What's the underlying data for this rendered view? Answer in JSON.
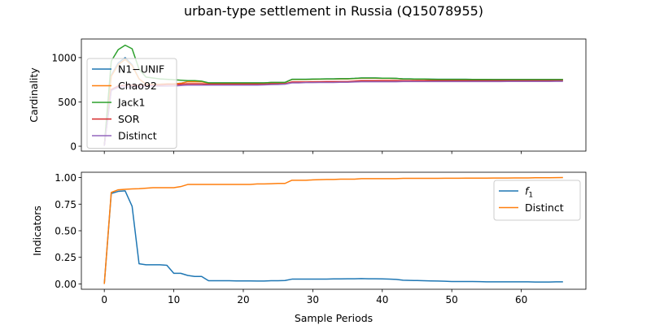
{
  "figure": {
    "title": "urban-type settlement in Russia (Q15078955)"
  },
  "chart_data": [
    {
      "type": "line",
      "ylabel": "Cardinality",
      "xlabel": "",
      "xlim": [
        -3.3,
        69.3
      ],
      "ylim": [
        -55,
        1210
      ],
      "xticks": [
        0,
        10,
        20,
        30,
        40,
        50,
        60
      ],
      "yticks": [
        0,
        500,
        1000
      ],
      "ytick_labels": [
        "0",
        "500",
        "1000"
      ],
      "show_x_tick_labels": false,
      "legend_position": "upper-left",
      "series": [
        {
          "name": "N1−UNIF",
          "color": "#1f77b4",
          "x": [
            0,
            1,
            2,
            3,
            4,
            5,
            6,
            7,
            8,
            9,
            10,
            11,
            12,
            13,
            14,
            15,
            16,
            17,
            18,
            19,
            20,
            21,
            22,
            23,
            24,
            25,
            26,
            27,
            28,
            29,
            30,
            31,
            32,
            33,
            34,
            35,
            36,
            37,
            38,
            39,
            40,
            41,
            42,
            43,
            44,
            45,
            46,
            47,
            48,
            49,
            50,
            51,
            52,
            53,
            54,
            55,
            56,
            57,
            58,
            59,
            60,
            61,
            62,
            63,
            64,
            65,
            66
          ],
          "y": [
            5,
            800,
            940,
            1000,
            920,
            760,
            700,
            700,
            700,
            705,
            705,
            710,
            730,
            730,
            730,
            715,
            715,
            715,
            715,
            715,
            715,
            715,
            715,
            715,
            720,
            720,
            720,
            755,
            755,
            755,
            757,
            758,
            760,
            760,
            762,
            762,
            765,
            770,
            770,
            770,
            768,
            768,
            766,
            760,
            760,
            758,
            758,
            756,
            755,
            755,
            755,
            755,
            755,
            754,
            754,
            754,
            753,
            753,
            753,
            753,
            753,
            753,
            753,
            753,
            753,
            753,
            753
          ]
        },
        {
          "name": "Chao92",
          "color": "#ff7f0e",
          "x": [
            0,
            1,
            2,
            3,
            4,
            5,
            6,
            7,
            8,
            9,
            10,
            11,
            12,
            13,
            14,
            15,
            16,
            17,
            18,
            19,
            20,
            21,
            22,
            23,
            24,
            25,
            26,
            27,
            28,
            29,
            30,
            31,
            32,
            33,
            34,
            35,
            36,
            37,
            38,
            39,
            40,
            41,
            42,
            43,
            44,
            45,
            46,
            47,
            48,
            49,
            50,
            51,
            52,
            53,
            54,
            55,
            56,
            57,
            58,
            59,
            60,
            61,
            62,
            63,
            64,
            65,
            66
          ],
          "y": [
            5,
            790,
            920,
            980,
            910,
            760,
            700,
            700,
            700,
            705,
            705,
            710,
            728,
            728,
            728,
            713,
            713,
            713,
            713,
            713,
            713,
            713,
            713,
            713,
            718,
            718,
            718,
            753,
            753,
            753,
            755,
            756,
            758,
            758,
            760,
            760,
            763,
            768,
            768,
            768,
            766,
            766,
            764,
            758,
            758,
            756,
            756,
            754,
            753,
            753,
            753,
            753,
            753,
            752,
            752,
            752,
            751,
            751,
            751,
            751,
            751,
            751,
            751,
            751,
            751,
            751,
            751
          ]
        },
        {
          "name": "Jack1",
          "color": "#2ca02c",
          "x": [
            0,
            1,
            2,
            3,
            4,
            5,
            6,
            7,
            8,
            9,
            10,
            11,
            12,
            13,
            14,
            15,
            16,
            17,
            18,
            19,
            20,
            21,
            22,
            23,
            24,
            25,
            26,
            27,
            28,
            29,
            30,
            31,
            32,
            33,
            34,
            35,
            36,
            37,
            38,
            39,
            40,
            41,
            42,
            43,
            44,
            45,
            46,
            47,
            48,
            49,
            50,
            51,
            52,
            53,
            54,
            55,
            56,
            57,
            58,
            59,
            60,
            61,
            62,
            63,
            64,
            65,
            66
          ],
          "y": [
            5,
            960,
            1090,
            1140,
            1100,
            870,
            780,
            770,
            760,
            755,
            750,
            745,
            740,
            740,
            735,
            715,
            715,
            715,
            715,
            715,
            715,
            715,
            715,
            715,
            720,
            720,
            720,
            755,
            755,
            755,
            757,
            758,
            760,
            760,
            762,
            762,
            765,
            770,
            770,
            770,
            768,
            768,
            766,
            760,
            760,
            758,
            758,
            756,
            755,
            755,
            755,
            755,
            755,
            754,
            754,
            754,
            753,
            753,
            753,
            753,
            753,
            753,
            753,
            753,
            753,
            753,
            753
          ]
        },
        {
          "name": "SOR",
          "color": "#d62728",
          "x": [
            0,
            1,
            2,
            3,
            4,
            5,
            6,
            7,
            8,
            9,
            10,
            11,
            12,
            13,
            14,
            15,
            16,
            17,
            18,
            19,
            20,
            21,
            22,
            23,
            24,
            25,
            26,
            27,
            28,
            29,
            30,
            31,
            32,
            33,
            34,
            35,
            36,
            37,
            38,
            39,
            40,
            41,
            42,
            43,
            44,
            45,
            46,
            47,
            48,
            49,
            50,
            51,
            52,
            53,
            54,
            55,
            56,
            57,
            58,
            59,
            60,
            61,
            62,
            63,
            64,
            65,
            66
          ],
          "y": [
            5,
            640,
            680,
            690,
            690,
            690,
            690,
            690,
            690,
            695,
            695,
            700,
            705,
            705,
            705,
            700,
            700,
            700,
            700,
            700,
            700,
            700,
            700,
            700,
            705,
            705,
            705,
            725,
            725,
            725,
            727,
            728,
            730,
            730,
            730,
            730,
            735,
            740,
            740,
            740,
            740,
            740,
            740,
            740,
            740,
            740,
            740,
            740,
            740,
            740,
            740,
            740,
            740,
            740,
            740,
            740,
            740,
            740,
            740,
            740,
            740,
            740,
            740,
            740,
            740,
            740,
            740
          ]
        },
        {
          "name": "Distinct",
          "color": "#9467bd",
          "x": [
            0,
            1,
            2,
            3,
            4,
            5,
            6,
            7,
            8,
            9,
            10,
            11,
            12,
            13,
            14,
            15,
            16,
            17,
            18,
            19,
            20,
            21,
            22,
            23,
            24,
            25,
            26,
            27,
            28,
            29,
            30,
            31,
            32,
            33,
            34,
            35,
            36,
            37,
            38,
            39,
            40,
            41,
            42,
            43,
            44,
            45,
            46,
            47,
            48,
            49,
            50,
            51,
            52,
            53,
            54,
            55,
            56,
            57,
            58,
            59,
            60,
            61,
            62,
            63,
            64,
            65,
            66
          ],
          "y": [
            5,
            630,
            665,
            668,
            670,
            670,
            675,
            678,
            678,
            678,
            680,
            685,
            690,
            690,
            690,
            690,
            690,
            690,
            690,
            690,
            690,
            690,
            690,
            692,
            695,
            697,
            700,
            715,
            715,
            718,
            718,
            720,
            720,
            720,
            722,
            722,
            725,
            728,
            728,
            728,
            728,
            728,
            728,
            730,
            730,
            730,
            730,
            730,
            730,
            730,
            730,
            730,
            730,
            730,
            730,
            730,
            730,
            730,
            731,
            731,
            731,
            731,
            731,
            731,
            731,
            732,
            732
          ]
        }
      ]
    },
    {
      "type": "line",
      "ylabel": "Indicators",
      "xlabel": "Sample Periods",
      "xlim": [
        -3.3,
        69.3
      ],
      "ylim": [
        -0.05,
        1.05
      ],
      "xticks": [
        0,
        10,
        20,
        30,
        40,
        50,
        60
      ],
      "xtick_labels": [
        "0",
        "10",
        "20",
        "30",
        "40",
        "50",
        "60"
      ],
      "yticks": [
        0,
        0.25,
        0.5,
        0.75,
        1.0
      ],
      "ytick_labels": [
        "0.00",
        "0.25",
        "0.50",
        "0.75",
        "1.00"
      ],
      "show_x_tick_labels": true,
      "legend_position": "upper-right",
      "series": [
        {
          "name": "f",
          "name_subscript": "1",
          "color": "#1f77b4",
          "x": [
            0,
            1,
            2,
            3,
            4,
            5,
            6,
            7,
            8,
            9,
            10,
            11,
            12,
            13,
            14,
            15,
            16,
            17,
            18,
            19,
            20,
            21,
            22,
            23,
            24,
            25,
            26,
            27,
            28,
            29,
            30,
            31,
            32,
            33,
            34,
            35,
            36,
            37,
            38,
            39,
            40,
            41,
            42,
            43,
            44,
            45,
            46,
            47,
            48,
            49,
            50,
            51,
            52,
            53,
            54,
            55,
            56,
            57,
            58,
            59,
            60,
            61,
            62,
            63,
            64,
            65,
            66
          ],
          "y": [
            0,
            0.85,
            0.87,
            0.875,
            0.73,
            0.19,
            0.18,
            0.18,
            0.18,
            0.175,
            0.1,
            0.1,
            0.08,
            0.07,
            0.07,
            0.03,
            0.03,
            0.03,
            0.03,
            0.028,
            0.028,
            0.028,
            0.027,
            0.027,
            0.03,
            0.03,
            0.032,
            0.045,
            0.045,
            0.045,
            0.045,
            0.045,
            0.045,
            0.047,
            0.047,
            0.048,
            0.048,
            0.05,
            0.048,
            0.048,
            0.047,
            0.045,
            0.043,
            0.035,
            0.033,
            0.032,
            0.03,
            0.028,
            0.027,
            0.025,
            0.023,
            0.023,
            0.023,
            0.023,
            0.022,
            0.02,
            0.02,
            0.02,
            0.02,
            0.02,
            0.02,
            0.02,
            0.018,
            0.018,
            0.018,
            0.02,
            0.02
          ]
        },
        {
          "name": "Distinct",
          "color": "#ff7f0e",
          "x": [
            0,
            1,
            2,
            3,
            4,
            5,
            6,
            7,
            8,
            9,
            10,
            11,
            12,
            13,
            14,
            15,
            16,
            17,
            18,
            19,
            20,
            21,
            22,
            23,
            24,
            25,
            26,
            27,
            28,
            29,
            30,
            31,
            32,
            33,
            34,
            35,
            36,
            37,
            38,
            39,
            40,
            41,
            42,
            43,
            44,
            45,
            46,
            47,
            48,
            49,
            50,
            51,
            52,
            53,
            54,
            55,
            56,
            57,
            58,
            59,
            60,
            61,
            62,
            63,
            64,
            65,
            66
          ],
          "y": [
            0,
            0.86,
            0.885,
            0.89,
            0.893,
            0.895,
            0.9,
            0.905,
            0.905,
            0.905,
            0.905,
            0.915,
            0.935,
            0.935,
            0.935,
            0.935,
            0.935,
            0.935,
            0.935,
            0.935,
            0.935,
            0.935,
            0.94,
            0.94,
            0.942,
            0.945,
            0.945,
            0.975,
            0.975,
            0.975,
            0.978,
            0.98,
            0.982,
            0.982,
            0.985,
            0.985,
            0.985,
            0.99,
            0.99,
            0.99,
            0.99,
            0.99,
            0.99,
            0.993,
            0.993,
            0.993,
            0.993,
            0.993,
            0.993,
            0.994,
            0.994,
            0.994,
            0.995,
            0.995,
            0.995,
            0.995,
            0.996,
            0.996,
            0.996,
            0.997,
            0.997,
            0.997,
            0.998,
            0.998,
            0.998,
            0.999,
            1.0
          ]
        }
      ]
    }
  ]
}
